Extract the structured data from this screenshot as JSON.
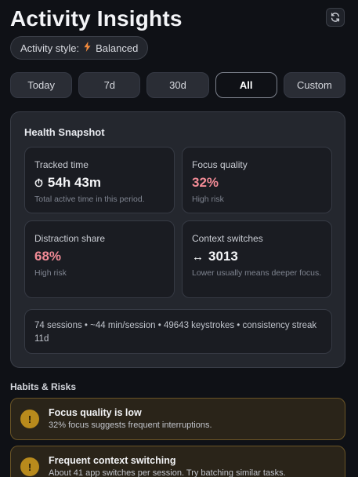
{
  "header": {
    "title": "Activity Insights",
    "refresh_icon": "refresh-icon"
  },
  "activity_style": {
    "label": "Activity style:",
    "icon": "bolt-icon",
    "value": "Balanced"
  },
  "tabs": [
    {
      "label": "Today",
      "active": false
    },
    {
      "label": "7d",
      "active": false
    },
    {
      "label": "30d",
      "active": false
    },
    {
      "label": "All",
      "active": true
    },
    {
      "label": "Custom",
      "active": false
    }
  ],
  "snapshot": {
    "title": "Health Snapshot",
    "cards": [
      {
        "label": "Tracked time",
        "icon": "stopwatch-icon",
        "value": "54h 43m",
        "sub": "Total active time in this period."
      },
      {
        "label": "Focus quality",
        "value": "32%",
        "sub": "High risk"
      },
      {
        "label": "Distraction share",
        "value": "68%",
        "sub": "High risk"
      },
      {
        "label": "Context switches",
        "icon": "left-right-arrow-icon",
        "value": "3013",
        "sub": "Lower usually means deeper focus."
      }
    ],
    "summary": "74 sessions • ~44 min/session • 49643 keystrokes • consistency streak 11d"
  },
  "habits": {
    "title": "Habits & Risks",
    "items": [
      {
        "title": "Focus quality is low",
        "desc": "32% focus suggests frequent interruptions.",
        "icon": "warning-icon"
      },
      {
        "title": "Frequent context switching",
        "desc": "About 41 app switches per session. Try batching similar tasks.",
        "icon": "warning-icon"
      }
    ]
  },
  "colors": {
    "background": "#0f1116",
    "risk_red": "#f28b96",
    "warning": "#b88a1c",
    "bolt": "#f08a3c"
  }
}
